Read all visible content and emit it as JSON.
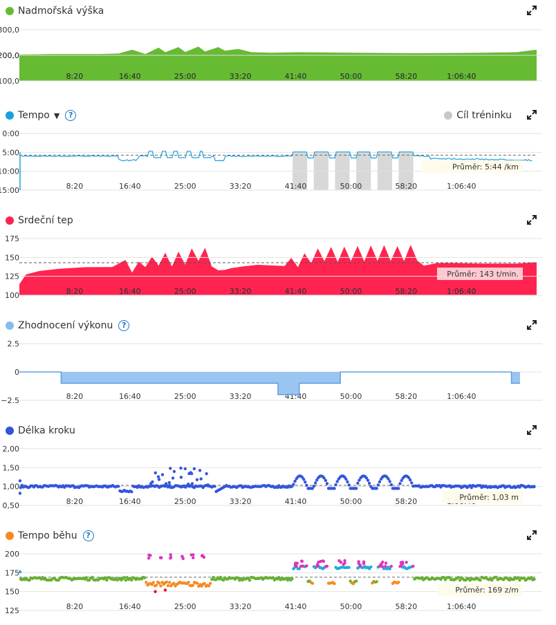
{
  "x_tick_labels": [
    "8:20",
    "16:40",
    "25:00",
    "33:20",
    "41:40",
    "50:00",
    "58:20",
    "1:06:40"
  ],
  "colors": {
    "elevation": "#66bb33",
    "pace": "#1aa0e0",
    "heart_rate": "#ff2450",
    "performance": "#88bbee",
    "stride": "#3355dd",
    "cadence_orange": "#f58a1f",
    "cadence_green": "#66b032",
    "cadence_blue": "#22aadd",
    "cadence_magenta": "#dd33bb",
    "cadence_red": "#e0142a",
    "workout_goal": "#c8c8c8",
    "icon": "#1a73c9"
  },
  "panels": {
    "elevation": {
      "title": "Nadmořská výška"
    },
    "pace": {
      "title": "Tempo",
      "help": "?",
      "goal_label": "Cíl tréninku",
      "avg_label": "Průměr: 5:44 /km"
    },
    "heart_rate": {
      "title": "Srdeční tep",
      "avg_label": "Průměr: 143 t/min."
    },
    "performance": {
      "title": "Zhodnocení výkonu",
      "help": "?"
    },
    "stride": {
      "title": "Délka kroku",
      "avg_label": "Průměr: 1,03 m"
    },
    "cadence": {
      "title": "Tempo běhu",
      "help": "?",
      "avg_label": "Průměr: 169 z/m"
    }
  },
  "chart_data": [
    {
      "type": "area",
      "title": "Nadmořská výška",
      "y_ticks": [
        "300,0",
        "200,0",
        "100,0"
      ],
      "ylim": [
        100,
        300
      ],
      "x_minutes": [
        0,
        5,
        12,
        15,
        17,
        19,
        21,
        22,
        24,
        25,
        27,
        28,
        30,
        31,
        33,
        35,
        38,
        42,
        50,
        60,
        70,
        75,
        78
      ],
      "values": [
        203,
        205,
        205,
        207,
        222,
        205,
        230,
        212,
        232,
        213,
        234,
        215,
        232,
        218,
        225,
        212,
        210,
        212,
        210,
        208,
        210,
        212,
        222
      ]
    },
    {
      "type": "line",
      "title": "Tempo",
      "y_ticks": [
        "0:00",
        "5:00",
        "10:00",
        "15:00"
      ],
      "ylim_minutes_per_km_inverted": [
        0,
        15
      ],
      "average": "5:44",
      "workout_goal_intervals_min": [
        [
          41.2,
          43.4
        ],
        [
          44.4,
          46.6
        ],
        [
          47.6,
          49.8
        ],
        [
          50.8,
          53.0
        ],
        [
          54.0,
          56.2
        ],
        [
          57.2,
          59.4
        ]
      ]
    },
    {
      "type": "area",
      "title": "Srdeční tep",
      "y_ticks": [
        "175",
        "150",
        "125",
        "100"
      ],
      "ylim": [
        100,
        175
      ],
      "average": 143,
      "x_minutes": [
        0,
        1,
        3,
        6,
        10,
        14,
        16,
        17,
        18,
        19,
        20,
        21,
        22,
        23,
        24,
        25,
        26,
        27,
        28,
        29,
        30,
        31,
        32,
        34,
        36,
        40,
        41,
        42,
        43,
        44,
        45,
        46,
        47,
        48,
        49,
        50,
        51,
        52,
        53,
        54,
        55,
        56,
        57,
        58,
        59,
        60,
        61,
        63,
        65,
        70,
        75,
        78
      ],
      "values": [
        115,
        128,
        133,
        135,
        137,
        138,
        147,
        130,
        145,
        138,
        152,
        140,
        156,
        138,
        157,
        140,
        162,
        145,
        163,
        138,
        132,
        133,
        135,
        138,
        140,
        138,
        150,
        138,
        155,
        142,
        162,
        145,
        164,
        144,
        165,
        146,
        166,
        145,
        166,
        146,
        166,
        146,
        166,
        146,
        166,
        145,
        140,
        142,
        143,
        142,
        141,
        143
      ]
    },
    {
      "type": "area",
      "title": "Zhodnocení výkonu",
      "y_ticks": [
        "2.5",
        "0",
        "−2.5"
      ],
      "ylim": [
        -2.5,
        2.5
      ],
      "x_minutes": [
        0,
        6.3,
        6.3,
        39,
        39,
        42.2,
        42.2,
        48.4,
        48.4,
        74.2,
        74.2,
        75.5
      ],
      "values": [
        0,
        0,
        -1,
        -1,
        -2,
        -2,
        -1,
        -1,
        0,
        0,
        -1,
        -1
      ]
    },
    {
      "type": "scatter",
      "title": "Délka kroku",
      "y_ticks": [
        "2,00",
        "1,50",
        "1,00",
        "0,50"
      ],
      "ylim": [
        0.5,
        2.0
      ],
      "average": 1.03
    },
    {
      "type": "scatter",
      "title": "Tempo běhu",
      "y_ticks": [
        "200",
        "175",
        "150",
        "125"
      ],
      "ylim": [
        125,
        200
      ],
      "average": 169
    }
  ]
}
